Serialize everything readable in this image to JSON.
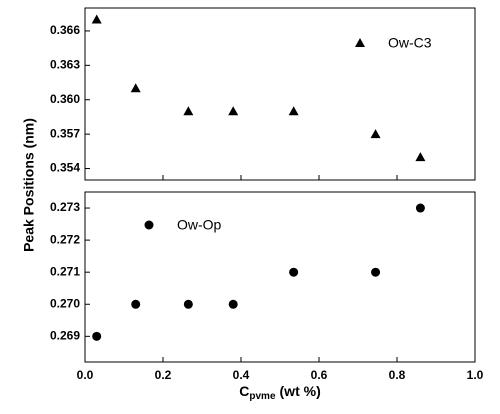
{
  "y_label": "Peak Positions (nm)",
  "x_label": {
    "base": "C",
    "sub": "pvme",
    "rest": "(wt %)"
  },
  "chart_data": [
    {
      "type": "scatter",
      "x": [
        0.03,
        0.13,
        0.265,
        0.38,
        0.535,
        0.745,
        0.86
      ],
      "series": [
        {
          "name": "Ow-C3",
          "marker": "triangle",
          "color": "#000000",
          "values": [
            0.367,
            0.361,
            0.359,
            0.359,
            0.359,
            0.357,
            0.355
          ]
        }
      ],
      "xlim": [
        0,
        1
      ],
      "xticks": [
        {
          "value": 0,
          "label": "0.0"
        },
        0.2,
        0.4,
        0.6,
        0.8,
        {
          "value": 1,
          "label": "1.0"
        }
      ],
      "xtick_labels": false,
      "ylim": [
        0.353,
        0.368
      ],
      "yticks": [
        0.354,
        0.357,
        {
          "value": 0.36,
          "label": "0.360"
        },
        0.363,
        0.366
      ]
    },
    {
      "type": "scatter",
      "x": [
        0.03,
        0.13,
        0.265,
        0.38,
        0.535,
        0.745,
        0.86
      ],
      "series": [
        {
          "name": "Ow-Op",
          "marker": "circle",
          "color": "#000000",
          "values": [
            0.269,
            0.27,
            0.27,
            0.27,
            0.271,
            0.271,
            0.273
          ]
        }
      ],
      "xlim": [
        0,
        1
      ],
      "xticks": [
        {
          "value": 0,
          "label": "0.0"
        },
        0.2,
        0.4,
        0.6,
        0.8,
        {
          "value": 1,
          "label": "1.0"
        }
      ],
      "xtick_labels": true,
      "ylim": [
        0.2682,
        0.2735
      ],
      "yticks": [
        0.269,
        {
          "value": 0.27,
          "label": "0.270"
        },
        0.271,
        0.272,
        0.273
      ]
    }
  ]
}
